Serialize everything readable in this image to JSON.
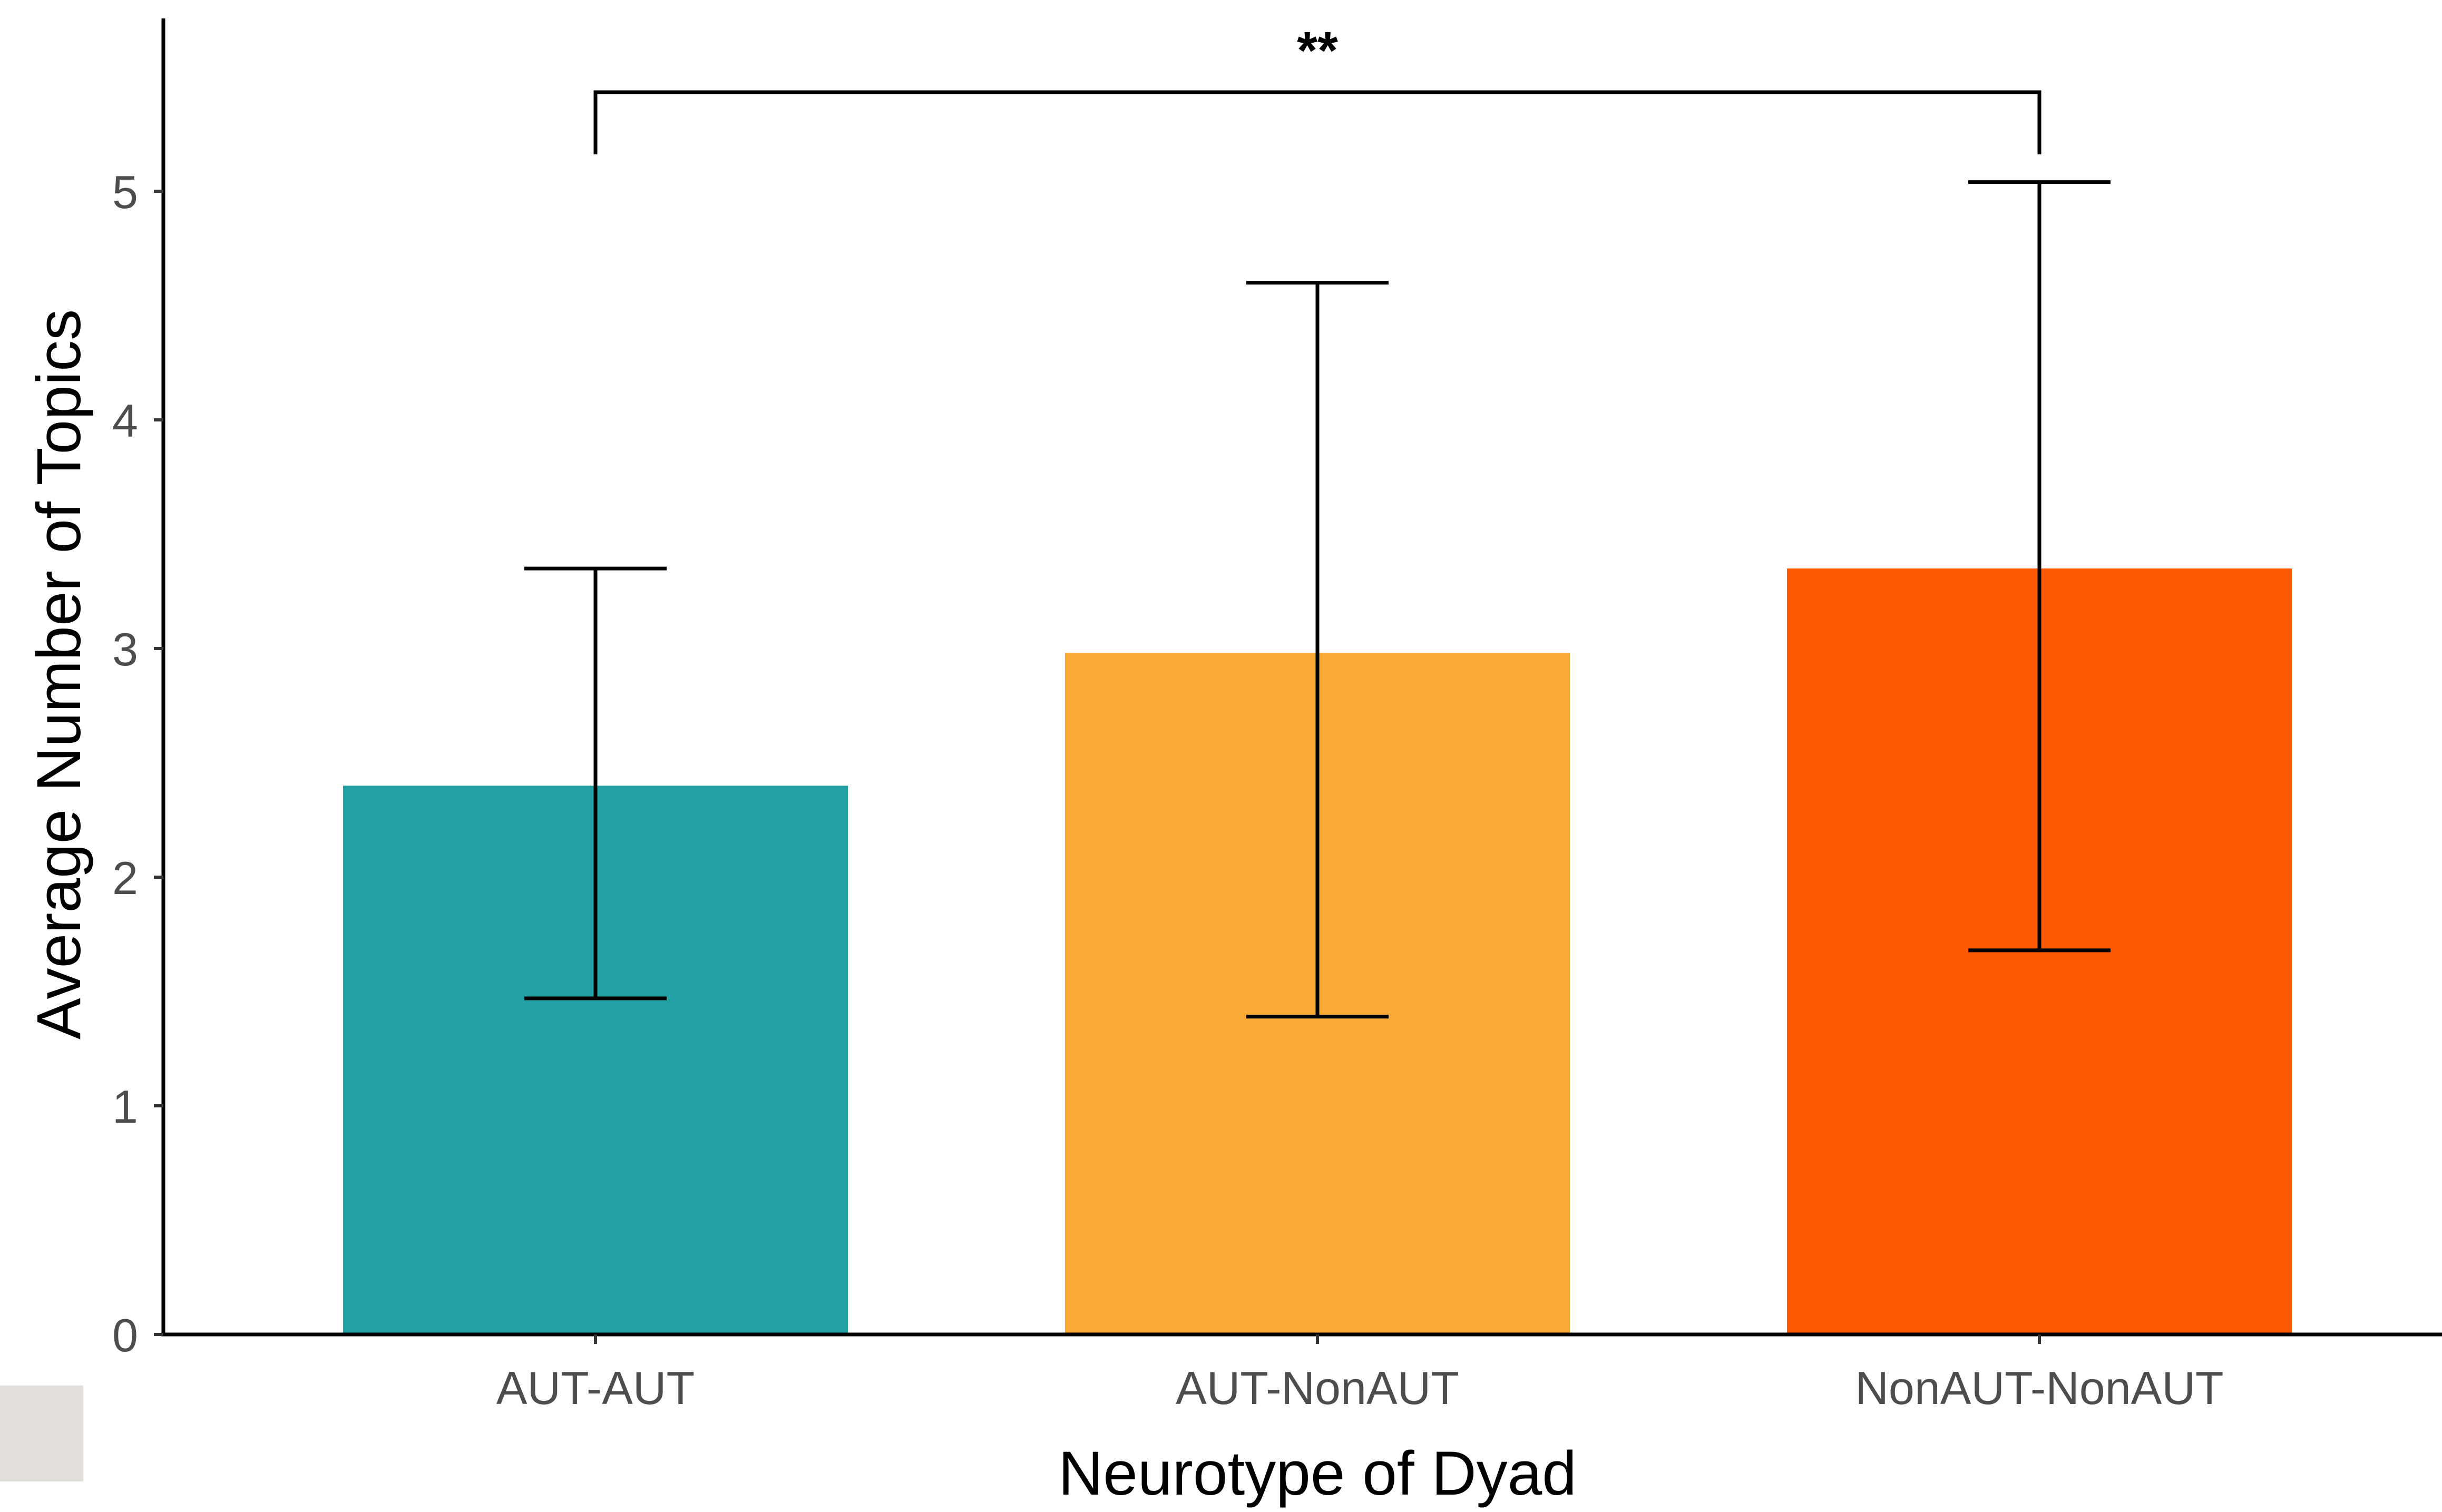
{
  "chart_data": {
    "type": "bar",
    "title": "",
    "xlabel": "Neurotype of Dyad",
    "ylabel": "Average Number of Topics",
    "categories": [
      "AUT-AUT",
      "AUT-NonAUT",
      "NonAUT-NonAUT"
    ],
    "values": [
      2.4,
      2.98,
      3.35
    ],
    "error_low": [
      1.47,
      1.39,
      1.68
    ],
    "error_high": [
      3.35,
      4.6,
      5.04
    ],
    "colors": [
      "#23a0a3",
      "#f9aa37",
      "#fd5a00"
    ],
    "ylim": [
      0,
      5.8
    ],
    "yticks": [
      0,
      1,
      2,
      3,
      4,
      5
    ],
    "ytick_labels": [
      "0",
      "1",
      "2",
      "3",
      "4",
      "5"
    ],
    "grid": false,
    "legend": "none",
    "significance": {
      "from": "AUT-AUT",
      "to": "NonAUT-NonAUT",
      "label": "**"
    }
  }
}
